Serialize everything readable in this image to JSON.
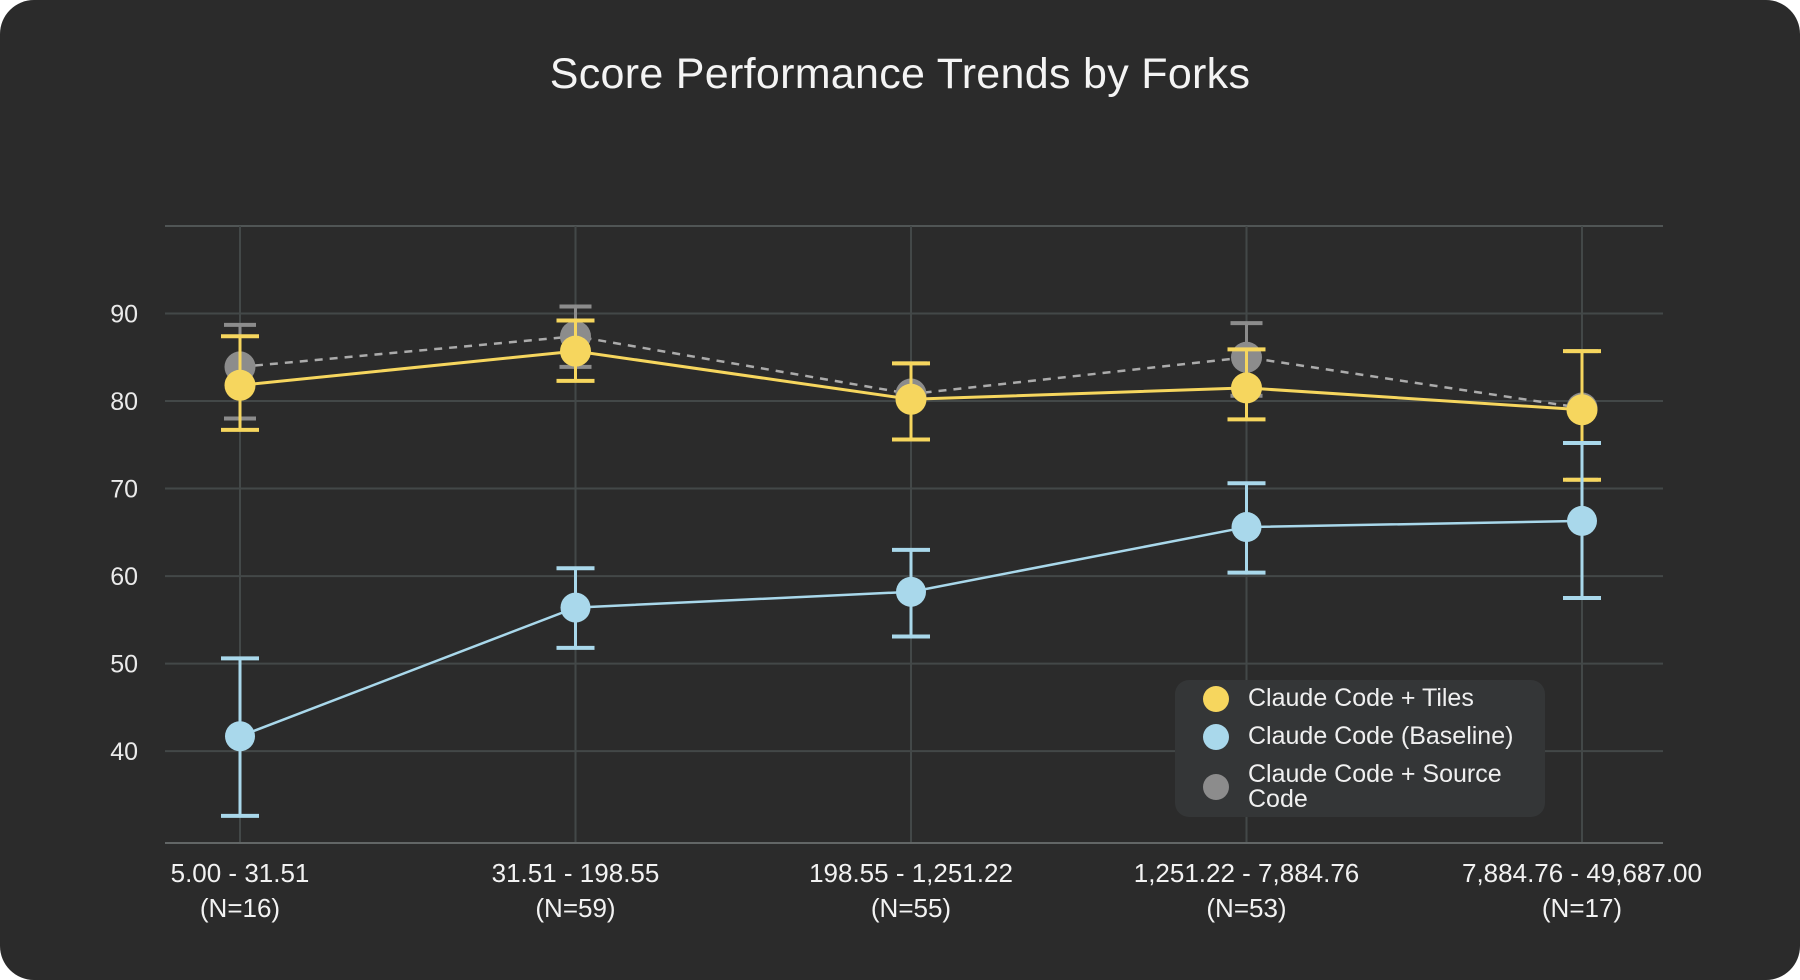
{
  "page": {
    "background_color": "#2b2b2b",
    "outer_background": "#ffffff"
  },
  "chart_data": {
    "type": "line",
    "title": "Score Performance Trends by Forks",
    "xlabel": "",
    "ylabel": "",
    "grid": true,
    "legend_position": "bottom-right",
    "y_ticks": [
      90,
      80,
      70,
      60,
      50,
      40
    ],
    "y_axis": {
      "top_value": 100,
      "bottom_value": 29.5
    },
    "categories": [
      {
        "range": "5.00 - 31.51",
        "n": "(N=16)"
      },
      {
        "range": "31.51 - 198.55",
        "n": "(N=59)"
      },
      {
        "range": "198.55 - 1,251.22",
        "n": "(N=55)"
      },
      {
        "range": "1,251.22 - 7,884.76",
        "n": "(N=53)"
      },
      {
        "range": "7,884.76 - 49,687.00",
        "n": "(N=17)"
      }
    ],
    "series": [
      {
        "id": "tiles",
        "name": "Claude Code + Tiles",
        "color": "#f6d65e",
        "line_style": "solid",
        "values": [
          81.8,
          85.7,
          80.2,
          81.5,
          79.0
        ],
        "err_lo": [
          76.7,
          82.3,
          75.6,
          77.9,
          71.0
        ],
        "err_hi": [
          87.4,
          89.2,
          84.3,
          85.9,
          85.7
        ]
      },
      {
        "id": "baseline",
        "name": "Claude Code (Baseline)",
        "color": "#a9d8eb",
        "line_style": "solid",
        "values": [
          41.7,
          56.4,
          58.2,
          65.6,
          66.3
        ],
        "err_lo": [
          32.6,
          51.8,
          53.1,
          60.4,
          57.5
        ],
        "err_hi": [
          50.6,
          60.9,
          63.0,
          70.6,
          75.2
        ]
      },
      {
        "id": "source",
        "name": "Claude Code + Source Code",
        "color": "#8c8c8c",
        "line_style": "dashed",
        "line_color": "#ababab",
        "values": [
          83.9,
          87.4,
          80.8,
          85.0,
          79.2
        ],
        "err_lo": [
          78.0,
          83.9,
          75.6,
          80.6,
          71.0
        ],
        "err_hi": [
          88.7,
          90.8,
          84.3,
          88.9,
          85.7
        ]
      }
    ],
    "draw_order": [
      "source",
      "tiles",
      "baseline"
    ],
    "colors": {
      "grid_line": "#434848",
      "top_line": "#505555",
      "axis_line": "#626666",
      "tick_text": "#eaeaea",
      "title_text": "#f4f4f4",
      "legend_bg": "#343637"
    }
  }
}
